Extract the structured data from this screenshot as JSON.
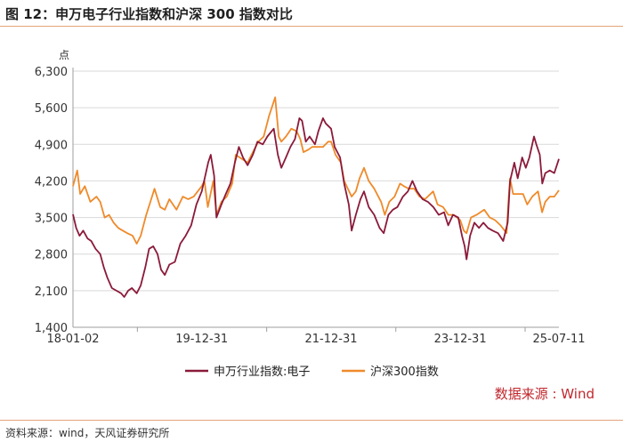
{
  "header": {
    "title": "图 12：申万电子行业指数和沪深  300 指数对比"
  },
  "footer": {
    "source_note": "资料来源：wind，天风证券研究所"
  },
  "chart_data": {
    "type": "line",
    "title": "申万电子行业指数和沪深300指数对比",
    "ylabel": "点",
    "xlabel": "",
    "ylim": [
      1400,
      6300
    ],
    "yticks": [
      1400,
      2100,
      2800,
      3500,
      4200,
      4900,
      5600,
      6300
    ],
    "ytick_labels": [
      "1,400",
      "2,100",
      "2,800",
      "3,500",
      "4,200",
      "4,900",
      "5,600",
      "6,300"
    ],
    "xlim": [
      "2018-01-02",
      "2025-07-11"
    ],
    "xtick_labels": [
      "18-01-02",
      "19-12-31",
      "21-12-31",
      "23-12-31",
      "25-07-11"
    ],
    "xtick_positions": [
      "2018-01-02",
      "2019-12-31",
      "2021-12-31",
      "2023-12-31",
      "2025-07-11"
    ],
    "minor_x_ticks": [
      "2019-01-01",
      "2021-01-01",
      "2023-01-01",
      "2025-01-01"
    ],
    "grid": true,
    "legend_position": "bottom",
    "source_label": "数据来源 : Wind",
    "series": [
      {
        "name": "申万行业指数:电子",
        "color": "#8b1a3a",
        "points": [
          [
            "2018-01-02",
            3560
          ],
          [
            "2018-01-20",
            3300
          ],
          [
            "2018-02-08",
            3150
          ],
          [
            "2018-03-01",
            3250
          ],
          [
            "2018-03-25",
            3100
          ],
          [
            "2018-04-15",
            3050
          ],
          [
            "2018-05-10",
            2900
          ],
          [
            "2018-06-05",
            2800
          ],
          [
            "2018-06-25",
            2550
          ],
          [
            "2018-07-15",
            2350
          ],
          [
            "2018-08-10",
            2150
          ],
          [
            "2018-09-05",
            2100
          ],
          [
            "2018-10-01",
            2050
          ],
          [
            "2018-10-19",
            1980
          ],
          [
            "2018-11-10",
            2100
          ],
          [
            "2018-12-01",
            2150
          ],
          [
            "2018-12-28",
            2050
          ],
          [
            "2019-01-20",
            2200
          ],
          [
            "2019-02-15",
            2550
          ],
          [
            "2019-03-08",
            2900
          ],
          [
            "2019-04-01",
            2950
          ],
          [
            "2019-04-25",
            2800
          ],
          [
            "2019-05-15",
            2500
          ],
          [
            "2019-06-05",
            2400
          ],
          [
            "2019-07-01",
            2600
          ],
          [
            "2019-08-01",
            2650
          ],
          [
            "2019-09-01",
            3000
          ],
          [
            "2019-10-01",
            3150
          ],
          [
            "2019-11-01",
            3350
          ],
          [
            "2019-12-01",
            3750
          ],
          [
            "2019-12-31",
            4000
          ],
          [
            "2020-02-05",
            4550
          ],
          [
            "2020-02-20",
            4700
          ],
          [
            "2020-03-10",
            4300
          ],
          [
            "2020-03-23",
            3500
          ],
          [
            "2020-04-20",
            3750
          ],
          [
            "2020-05-15",
            3950
          ],
          [
            "2020-06-10",
            4150
          ],
          [
            "2020-07-05",
            4550
          ],
          [
            "2020-07-28",
            4850
          ],
          [
            "2020-08-20",
            4650
          ],
          [
            "2020-09-15",
            4500
          ],
          [
            "2020-10-15",
            4700
          ],
          [
            "2020-11-10",
            4950
          ],
          [
            "2020-12-10",
            4900
          ],
          [
            "2021-01-05",
            5050
          ],
          [
            "2021-02-10",
            5200
          ],
          [
            "2021-03-05",
            4700
          ],
          [
            "2021-03-25",
            4450
          ],
          [
            "2021-04-20",
            4650
          ],
          [
            "2021-05-15",
            4850
          ],
          [
            "2021-06-10",
            5000
          ],
          [
            "2021-07-05",
            5400
          ],
          [
            "2021-07-20",
            5350
          ],
          [
            "2021-08-10",
            4950
          ],
          [
            "2021-09-01",
            5050
          ],
          [
            "2021-10-01",
            4900
          ],
          [
            "2021-10-20",
            5150
          ],
          [
            "2021-11-15",
            5400
          ],
          [
            "2021-12-01",
            5300
          ],
          [
            "2021-12-31",
            5200
          ],
          [
            "2022-01-20",
            4850
          ],
          [
            "2022-02-20",
            4650
          ],
          [
            "2022-03-15",
            4150
          ],
          [
            "2022-04-10",
            3750
          ],
          [
            "2022-04-26",
            3250
          ],
          [
            "2022-05-20",
            3550
          ],
          [
            "2022-06-15",
            3850
          ],
          [
            "2022-07-05",
            4000
          ],
          [
            "2022-08-01",
            3700
          ],
          [
            "2022-09-01",
            3550
          ],
          [
            "2022-10-01",
            3300
          ],
          [
            "2022-10-25",
            3200
          ],
          [
            "2022-11-20",
            3550
          ],
          [
            "2022-12-15",
            3650
          ],
          [
            "2023-01-10",
            3700
          ],
          [
            "2023-02-10",
            3900
          ],
          [
            "2023-03-10",
            4000
          ],
          [
            "2023-04-05",
            4200
          ],
          [
            "2023-05-01",
            4000
          ],
          [
            "2023-06-01",
            3850
          ],
          [
            "2023-07-01",
            3800
          ],
          [
            "2023-08-01",
            3700
          ],
          [
            "2023-09-01",
            3550
          ],
          [
            "2023-10-01",
            3600
          ],
          [
            "2023-10-24",
            3350
          ],
          [
            "2023-11-20",
            3550
          ],
          [
            "2023-12-20",
            3500
          ],
          [
            "2024-01-10",
            3150
          ],
          [
            "2024-01-25",
            2950
          ],
          [
            "2024-02-05",
            2700
          ],
          [
            "2024-02-25",
            3150
          ],
          [
            "2024-03-20",
            3400
          ],
          [
            "2024-04-15",
            3300
          ],
          [
            "2024-05-10",
            3400
          ],
          [
            "2024-06-05",
            3300
          ],
          [
            "2024-07-01",
            3250
          ],
          [
            "2024-08-01",
            3200
          ],
          [
            "2024-08-30",
            3050
          ],
          [
            "2024-09-24",
            3400
          ],
          [
            "2024-10-08",
            4200
          ],
          [
            "2024-11-01",
            4550
          ],
          [
            "2024-11-20",
            4250
          ],
          [
            "2024-12-15",
            4650
          ],
          [
            "2025-01-05",
            4450
          ],
          [
            "2025-01-25",
            4650
          ],
          [
            "2025-02-20",
            5050
          ],
          [
            "2025-03-05",
            4900
          ],
          [
            "2025-03-25",
            4700
          ],
          [
            "2025-04-08",
            4150
          ],
          [
            "2025-04-25",
            4350
          ],
          [
            "2025-05-20",
            4400
          ],
          [
            "2025-06-15",
            4350
          ],
          [
            "2025-07-11",
            4620
          ]
        ]
      },
      {
        "name": "沪深300指数",
        "color": "#ef8a2a",
        "points": [
          [
            "2018-01-02",
            4100
          ],
          [
            "2018-01-26",
            4400
          ],
          [
            "2018-02-12",
            3950
          ],
          [
            "2018-03-10",
            4100
          ],
          [
            "2018-04-10",
            3800
          ],
          [
            "2018-05-15",
            3900
          ],
          [
            "2018-06-05",
            3800
          ],
          [
            "2018-06-30",
            3500
          ],
          [
            "2018-07-25",
            3550
          ],
          [
            "2018-08-20",
            3400
          ],
          [
            "2018-09-15",
            3300
          ],
          [
            "2018-10-10",
            3250
          ],
          [
            "2018-11-05",
            3200
          ],
          [
            "2018-12-05",
            3150
          ],
          [
            "2018-12-28",
            3000
          ],
          [
            "2019-01-20",
            3150
          ],
          [
            "2019-02-20",
            3550
          ],
          [
            "2019-03-20",
            3850
          ],
          [
            "2019-04-08",
            4050
          ],
          [
            "2019-05-10",
            3700
          ],
          [
            "2019-06-05",
            3650
          ],
          [
            "2019-07-01",
            3850
          ],
          [
            "2019-08-10",
            3650
          ],
          [
            "2019-09-15",
            3900
          ],
          [
            "2019-10-15",
            3850
          ],
          [
            "2019-11-15",
            3900
          ],
          [
            "2019-12-31",
            4100
          ],
          [
            "2020-01-15",
            4200
          ],
          [
            "2020-02-03",
            3700
          ],
          [
            "2020-03-05",
            4200
          ],
          [
            "2020-03-23",
            3550
          ],
          [
            "2020-04-20",
            3800
          ],
          [
            "2020-05-20",
            3900
          ],
          [
            "2020-06-20",
            4150
          ],
          [
            "2020-07-10",
            4700
          ],
          [
            "2020-08-01",
            4650
          ],
          [
            "2020-09-15",
            4550
          ],
          [
            "2020-10-15",
            4750
          ],
          [
            "2020-11-15",
            4950
          ],
          [
            "2020-12-15",
            5050
          ],
          [
            "2021-01-15",
            5450
          ],
          [
            "2021-02-18",
            5800
          ],
          [
            "2021-03-10",
            5050
          ],
          [
            "2021-03-25",
            4950
          ],
          [
            "2021-04-20",
            5050
          ],
          [
            "2021-05-20",
            5200
          ],
          [
            "2021-06-20",
            5150
          ],
          [
            "2021-07-10",
            5000
          ],
          [
            "2021-07-28",
            4750
          ],
          [
            "2021-08-25",
            4800
          ],
          [
            "2021-09-15",
            4850
          ],
          [
            "2021-10-15",
            4850
          ],
          [
            "2021-11-15",
            4850
          ],
          [
            "2021-12-15",
            4950
          ],
          [
            "2021-12-31",
            4950
          ],
          [
            "2022-01-25",
            4700
          ],
          [
            "2022-02-25",
            4550
          ],
          [
            "2022-03-15",
            4200
          ],
          [
            "2022-04-26",
            3900
          ],
          [
            "2022-05-20",
            4000
          ],
          [
            "2022-06-10",
            4250
          ],
          [
            "2022-07-05",
            4450
          ],
          [
            "2022-08-01",
            4200
          ],
          [
            "2022-09-01",
            4050
          ],
          [
            "2022-10-10",
            3800
          ],
          [
            "2022-10-31",
            3550
          ],
          [
            "2022-11-25",
            3800
          ],
          [
            "2022-12-25",
            3900
          ],
          [
            "2023-01-25",
            4150
          ],
          [
            "2023-02-15",
            4100
          ],
          [
            "2023-03-15",
            4050
          ],
          [
            "2023-04-15",
            4050
          ],
          [
            "2023-05-15",
            3900
          ],
          [
            "2023-06-15",
            3850
          ],
          [
            "2023-07-31",
            4000
          ],
          [
            "2023-08-25",
            3750
          ],
          [
            "2023-09-25",
            3700
          ],
          [
            "2023-10-25",
            3550
          ],
          [
            "2023-11-25",
            3550
          ],
          [
            "2023-12-31",
            3450
          ],
          [
            "2024-01-20",
            3250
          ],
          [
            "2024-02-05",
            3200
          ],
          [
            "2024-03-01",
            3500
          ],
          [
            "2024-04-01",
            3550
          ],
          [
            "2024-05-15",
            3650
          ],
          [
            "2024-06-15",
            3500
          ],
          [
            "2024-07-15",
            3450
          ],
          [
            "2024-08-15",
            3350
          ],
          [
            "2024-09-18",
            3200
          ],
          [
            "2024-09-30",
            3900
          ],
          [
            "2024-10-08",
            4250
          ],
          [
            "2024-10-25",
            3950
          ],
          [
            "2024-11-20",
            3950
          ],
          [
            "2024-12-20",
            3950
          ],
          [
            "2025-01-13",
            3750
          ],
          [
            "2025-02-10",
            3900
          ],
          [
            "2025-03-15",
            4000
          ],
          [
            "2025-04-07",
            3600
          ],
          [
            "2025-04-25",
            3800
          ],
          [
            "2025-05-20",
            3900
          ],
          [
            "2025-06-15",
            3900
          ],
          [
            "2025-07-11",
            4020
          ]
        ]
      }
    ]
  }
}
